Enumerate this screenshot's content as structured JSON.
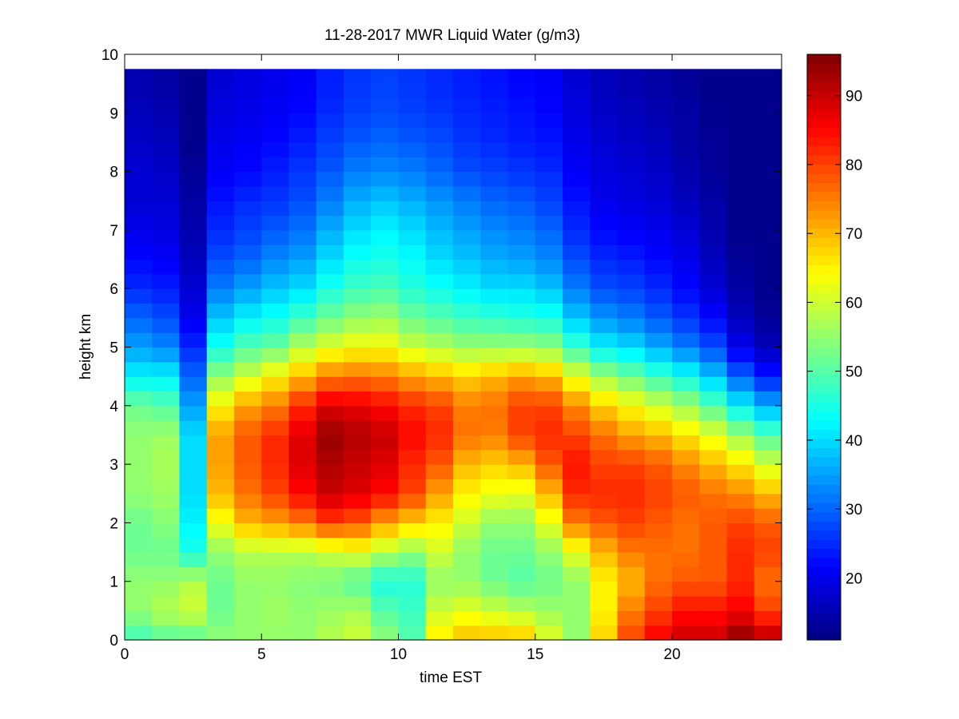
{
  "chart_data": {
    "type": "heatmap",
    "title": "11-28-2017 MWR Liquid Water (g/m3)",
    "xlabel": "time EST",
    "ylabel": "height km",
    "xlim": [
      0,
      24
    ],
    "ylim": [
      0,
      10
    ],
    "x_ticks": [
      "0",
      "5",
      "10",
      "15",
      "20"
    ],
    "y_ticks": [
      "0",
      "1",
      "2",
      "3",
      "4",
      "5",
      "6",
      "7",
      "8",
      "9",
      "10"
    ],
    "colorbar": {
      "range": [
        11,
        96
      ],
      "ticks": [
        "20",
        "30",
        "40",
        "50",
        "60",
        "70",
        "80",
        "90"
      ],
      "colormap": "jet"
    },
    "grid": false,
    "time_hours": [
      0,
      1,
      2,
      3,
      4,
      5,
      6,
      7,
      8,
      9,
      10,
      11,
      12,
      13,
      14,
      15,
      16,
      17,
      18,
      19,
      20,
      21,
      22,
      23
    ],
    "height_max_km": 9.75,
    "heights_km": [
      0,
      0.5,
      1,
      1.5,
      2,
      2.5,
      3,
      3.5,
      4,
      4.5,
      5,
      5.5,
      6,
      6.5,
      7,
      7.5,
      8,
      8.5,
      9,
      9.5
    ],
    "series": [
      {
        "time": 0,
        "values": [
          48,
          55,
          55,
          52,
          52,
          55,
          55,
          55,
          52,
          42,
          35,
          30,
          25,
          22,
          20,
          18,
          18,
          17,
          16,
          15
        ]
      },
      {
        "time": 1,
        "values": [
          50,
          58,
          55,
          52,
          54,
          56,
          57,
          56,
          50,
          42,
          33,
          28,
          24,
          21,
          19,
          18,
          17,
          16,
          15,
          14
        ]
      },
      {
        "time": 2,
        "values": [
          50,
          60,
          58,
          45,
          42,
          40,
          40,
          40,
          35,
          30,
          25,
          20,
          18,
          16,
          15,
          14,
          13,
          12,
          12,
          12
        ]
      },
      {
        "time": 3,
        "values": [
          55,
          52,
          52,
          55,
          63,
          70,
          72,
          72,
          65,
          55,
          45,
          38,
          32,
          28,
          25,
          23,
          21,
          20,
          19,
          18
        ]
      },
      {
        "time": 4,
        "values": [
          55,
          55,
          55,
          58,
          70,
          76,
          78,
          78,
          72,
          60,
          50,
          42,
          35,
          30,
          27,
          25,
          22,
          21,
          20,
          19
        ]
      },
      {
        "time": 5,
        "values": [
          55,
          56,
          55,
          58,
          72,
          80,
          82,
          82,
          75,
          65,
          52,
          44,
          38,
          33,
          29,
          26,
          24,
          22,
          21,
          20
        ]
      },
      {
        "time": 6,
        "values": [
          55,
          55,
          54,
          58,
          75,
          85,
          88,
          88,
          82,
          70,
          58,
          48,
          40,
          35,
          31,
          28,
          26,
          24,
          22,
          21
        ]
      },
      {
        "time": 7,
        "values": [
          58,
          56,
          53,
          60,
          80,
          90,
          92,
          94,
          88,
          75,
          62,
          52,
          45,
          40,
          36,
          32,
          29,
          27,
          25,
          24
        ]
      },
      {
        "time": 8,
        "values": [
          60,
          57,
          50,
          62,
          78,
          88,
          90,
          92,
          87,
          76,
          64,
          55,
          48,
          44,
          40,
          36,
          32,
          29,
          27,
          26
        ]
      },
      {
        "time": 9,
        "values": [
          55,
          50,
          45,
          58,
          72,
          85,
          88,
          90,
          85,
          75,
          64,
          56,
          49,
          45,
          42,
          38,
          33,
          30,
          28,
          27
        ]
      },
      {
        "time": 10,
        "values": [
          50,
          48,
          46,
          55,
          68,
          80,
          82,
          85,
          82,
          72,
          60,
          52,
          46,
          43,
          40,
          36,
          32,
          29,
          27,
          26
        ]
      },
      {
        "time": 11,
        "values": [
          66,
          60,
          55,
          60,
          65,
          72,
          78,
          82,
          80,
          70,
          58,
          50,
          44,
          40,
          37,
          34,
          30,
          28,
          26,
          25
        ]
      },
      {
        "time": 12,
        "values": [
          70,
          62,
          55,
          55,
          60,
          65,
          70,
          76,
          75,
          68,
          56,
          48,
          42,
          38,
          35,
          32,
          28,
          26,
          25,
          24
        ]
      },
      {
        "time": 13,
        "values": [
          70,
          60,
          52,
          52,
          55,
          63,
          68,
          75,
          76,
          70,
          56,
          47,
          40,
          36,
          33,
          30,
          27,
          25,
          24,
          23
        ]
      },
      {
        "time": 14,
        "values": [
          70,
          58,
          50,
          52,
          55,
          62,
          70,
          80,
          80,
          72,
          56,
          46,
          40,
          35,
          32,
          29,
          26,
          24,
          23,
          22
        ]
      },
      {
        "time": 15,
        "values": [
          62,
          56,
          52,
          55,
          62,
          70,
          78,
          82,
          80,
          70,
          55,
          45,
          38,
          33,
          30,
          27,
          25,
          23,
          22,
          21
        ]
      },
      {
        "time": 16,
        "values": [
          55,
          55,
          55,
          62,
          75,
          82,
          84,
          80,
          74,
          62,
          48,
          38,
          32,
          28,
          25,
          23,
          21,
          20,
          19,
          18
        ]
      },
      {
        "time": 17,
        "values": [
          68,
          65,
          65,
          70,
          78,
          82,
          80,
          76,
          68,
          56,
          42,
          34,
          28,
          25,
          22,
          20,
          19,
          18,
          17,
          16
        ]
      },
      {
        "time": 18,
        "values": [
          80,
          75,
          70,
          75,
          80,
          82,
          80,
          72,
          64,
          52,
          40,
          32,
          27,
          24,
          21,
          19,
          18,
          17,
          16,
          15
        ]
      },
      {
        "time": 19,
        "values": [
          86,
          80,
          76,
          76,
          78,
          80,
          78,
          70,
          60,
          48,
          36,
          29,
          25,
          22,
          20,
          18,
          17,
          16,
          15,
          14
        ]
      },
      {
        "time": 20,
        "values": [
          90,
          84,
          78,
          76,
          76,
          78,
          74,
          66,
          56,
          44,
          32,
          26,
          22,
          20,
          18,
          16,
          15,
          14,
          14,
          13
        ]
      },
      {
        "time": 21,
        "values": [
          90,
          84,
          78,
          78,
          78,
          76,
          70,
          62,
          50,
          38,
          28,
          22,
          18,
          16,
          15,
          14,
          13,
          13,
          12,
          12
        ]
      },
      {
        "time": 22,
        "values": [
          95,
          86,
          82,
          82,
          80,
          74,
          66,
          56,
          42,
          30,
          20,
          16,
          14,
          13,
          12,
          12,
          12,
          12,
          12,
          12
        ]
      },
      {
        "time": 23,
        "values": [
          92,
          80,
          76,
          80,
          78,
          70,
          60,
          50,
          36,
          24,
          16,
          13,
          12,
          12,
          12,
          12,
          12,
          12,
          12,
          12
        ]
      }
    ]
  }
}
